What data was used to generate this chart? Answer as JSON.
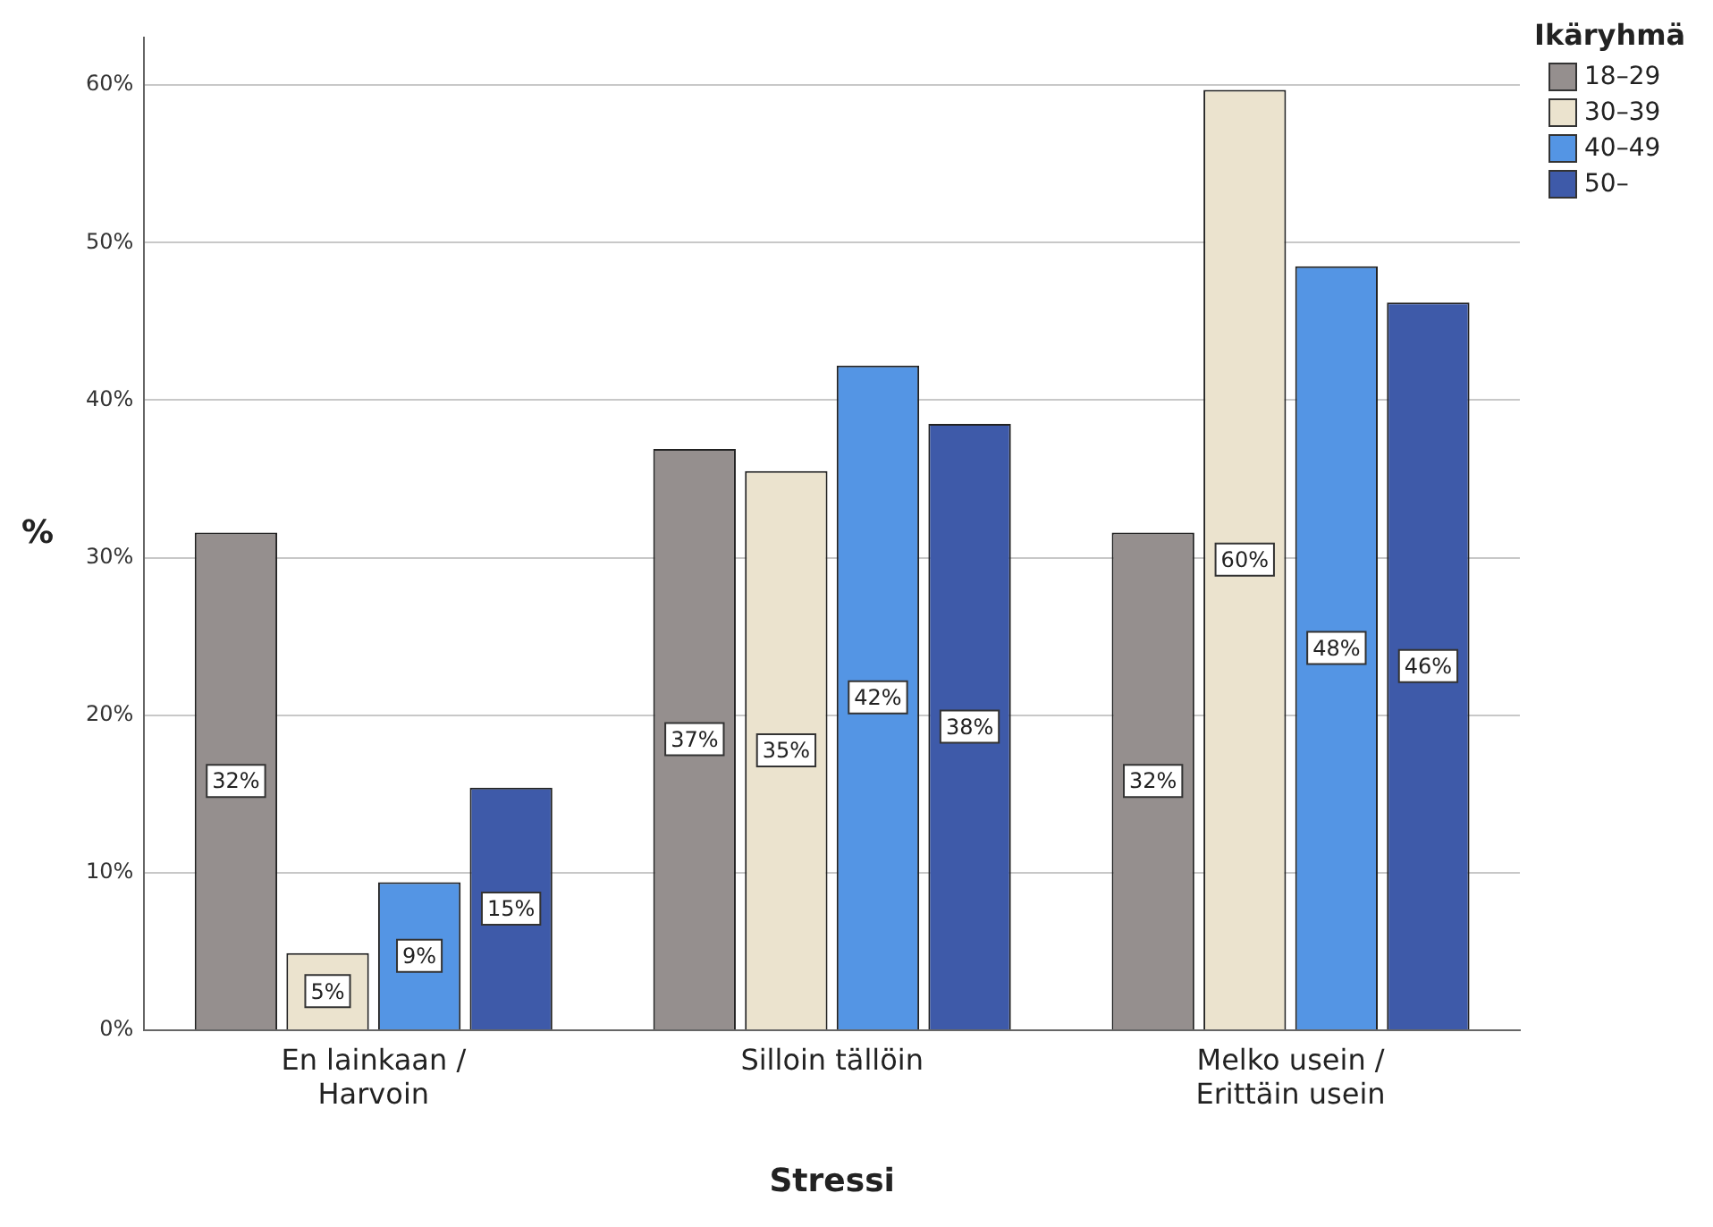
{
  "chart_data": {
    "type": "bar",
    "xlabel": "Stressi",
    "ylabel": "%",
    "legend_title": "Ikäryhmä",
    "categories": [
      "En lainkaan /\nHarvoin",
      "Silloin tällöin",
      "Melko usein /\nErittäin usein"
    ],
    "series": [
      {
        "name": "18–29",
        "color": "#958f8e",
        "values": [
          31.6,
          36.9,
          31.6
        ],
        "value_labels": [
          "32%",
          "37%",
          "32%"
        ]
      },
      {
        "name": "30–39",
        "color": "#ebe3ce",
        "values": [
          4.9,
          35.5,
          59.7
        ],
        "value_labels": [
          "5%",
          "35%",
          "60%"
        ]
      },
      {
        "name": "40–49",
        "color": "#5495e4",
        "values": [
          9.4,
          42.2,
          48.5
        ],
        "value_labels": [
          "9%",
          "42%",
          "48%"
        ]
      },
      {
        "name": "50–",
        "color": "#3e5aa9",
        "values": [
          15.4,
          38.5,
          46.2
        ],
        "value_labels": [
          "15%",
          "38%",
          "46%"
        ]
      }
    ],
    "ylim": [
      0,
      63
    ],
    "yticks": [
      {
        "value": 0,
        "label": "0%"
      },
      {
        "value": 10,
        "label": "10%"
      },
      {
        "value": 20,
        "label": "20%"
      },
      {
        "value": 30,
        "label": "30%"
      },
      {
        "value": 40,
        "label": "40%"
      },
      {
        "value": 50,
        "label": "50%"
      },
      {
        "value": 60,
        "label": "60%"
      }
    ],
    "grid": "y",
    "legend": "top right"
  }
}
